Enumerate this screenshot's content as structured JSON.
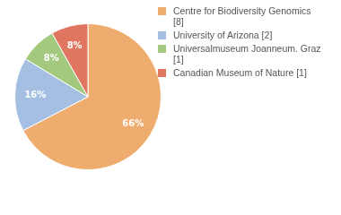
{
  "chart_data": {
    "type": "pie",
    "categories": [
      "Centre for Biodiversity Genomics [8]",
      "University of Arizona [2]",
      "Universalmuseum Joanneum. Graz [1]",
      "Canadian Museum of Nature [1]"
    ],
    "values": [
      66,
      16,
      8,
      8
    ],
    "value_labels": [
      "66%",
      "16%",
      "8%",
      "8%"
    ],
    "colors": [
      "#efac6f",
      "#a5bfe2",
      "#a3c97f",
      "#e07560"
    ],
    "data_labels": true,
    "legend": "right"
  }
}
